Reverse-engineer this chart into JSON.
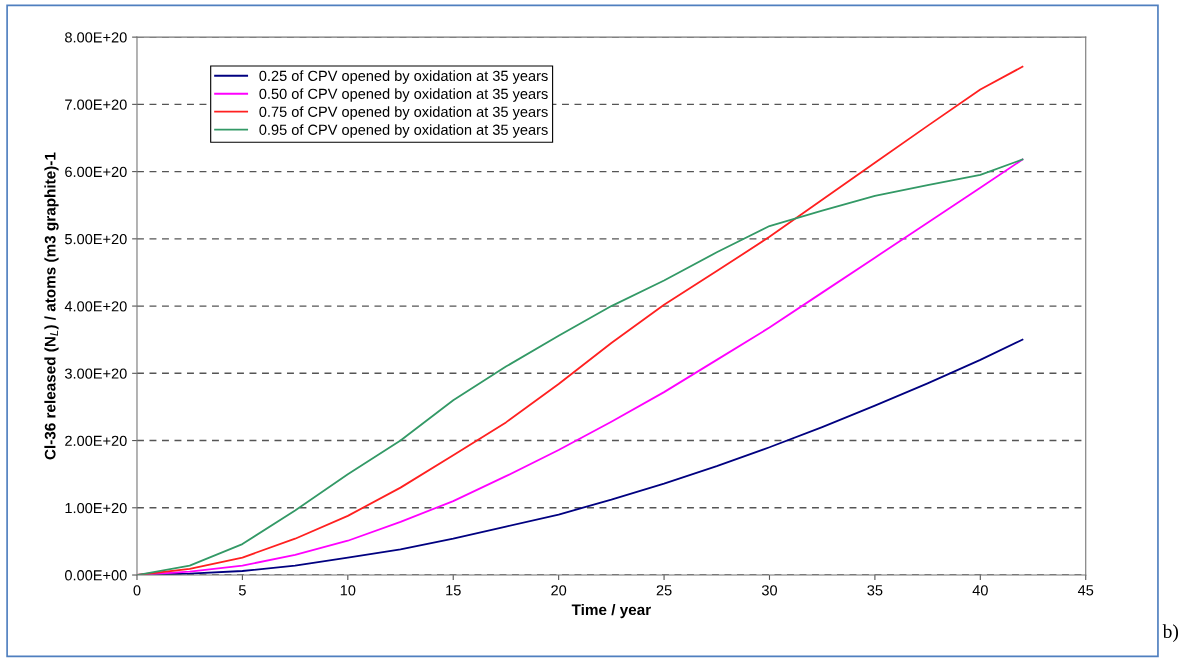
{
  "chart_data": {
    "type": "line",
    "xlabel": "Time / year",
    "ylabel": "Cl-36 released (N$_{L}$) / atoms (m3 graphite)-1",
    "x": [
      0,
      2.5,
      5,
      7.5,
      10,
      12.5,
      15,
      17.5,
      20,
      22.5,
      25,
      27.5,
      30,
      32.5,
      35,
      37.5,
      40,
      42
    ],
    "series": [
      {
        "name": "0.25 of CPV opened by oxidation at 35 years",
        "color": "#000080",
        "values": [
          0,
          2e+18,
          6e+18,
          1.4e+19,
          2.6e+19,
          3.8e+19,
          5.4e+19,
          7.2e+19,
          9e+19,
          1.12e+20,
          1.36e+20,
          1.62e+20,
          1.9e+20,
          2.2e+20,
          2.52e+20,
          2.85e+20,
          3.2e+20,
          3.5e+20
        ]
      },
      {
        "name": "0.50 of CPV opened by oxidation at 35 years",
        "color": "#ff00ff",
        "values": [
          0,
          5e+18,
          1.4e+19,
          3e+19,
          5.1e+19,
          7.9e+19,
          1.1e+20,
          1.47e+20,
          1.86e+20,
          2.28e+20,
          2.72e+20,
          3.2e+20,
          3.68e+20,
          4.2e+20,
          4.72e+20,
          5.24e+20,
          5.76e+20,
          6.18e+20
        ]
      },
      {
        "name": "0.75 of CPV opened by oxidation at 35 years",
        "color": "#ff2020",
        "values": [
          0,
          9e+18,
          2.6e+19,
          5.4e+19,
          8.8e+19,
          1.3e+20,
          1.78e+20,
          2.27e+20,
          2.84e+20,
          3.45e+20,
          4.02e+20,
          4.52e+20,
          5.03e+20,
          5.58e+20,
          6.13e+20,
          6.68e+20,
          7.22e+20,
          7.56e+20
        ]
      },
      {
        "name": "0.95 of CPV opened by oxidation at 35 years",
        "color": "#339966",
        "values": [
          0,
          1.4e+19,
          4.6e+19,
          9.6e+19,
          1.5e+20,
          2e+20,
          2.6e+20,
          3.1e+20,
          3.56e+20,
          4e+20,
          4.38e+20,
          4.8e+20,
          5.19e+20,
          5.42e+20,
          5.64e+20,
          5.8e+20,
          5.95e+20,
          6.18e+20
        ]
      }
    ],
    "xlim": [
      0,
      45
    ],
    "xticks": [
      0,
      5,
      10,
      15,
      20,
      25,
      30,
      35,
      40,
      45
    ],
    "ylim": [
      0,
      8e+20
    ],
    "yticks": [
      {
        "value": 0,
        "label": "0.00E+00"
      },
      {
        "value": 1e+20,
        "label": "1.00E+20"
      },
      {
        "value": 2e+20,
        "label": "2.00E+20"
      },
      {
        "value": 3e+20,
        "label": "3.00E+20"
      },
      {
        "value": 4e+20,
        "label": "4.00E+20"
      },
      {
        "value": 5e+20,
        "label": "5.00E+20"
      },
      {
        "value": 6e+20,
        "label": "6.00E+20"
      },
      {
        "value": 7e+20,
        "label": "7.00E+20"
      },
      {
        "value": 8e+20,
        "label": "8.00E+20"
      }
    ],
    "grid": "y",
    "legend": "top left",
    "marker": "none",
    "line_style": "solid",
    "annotations": [
      "b)"
    ]
  }
}
